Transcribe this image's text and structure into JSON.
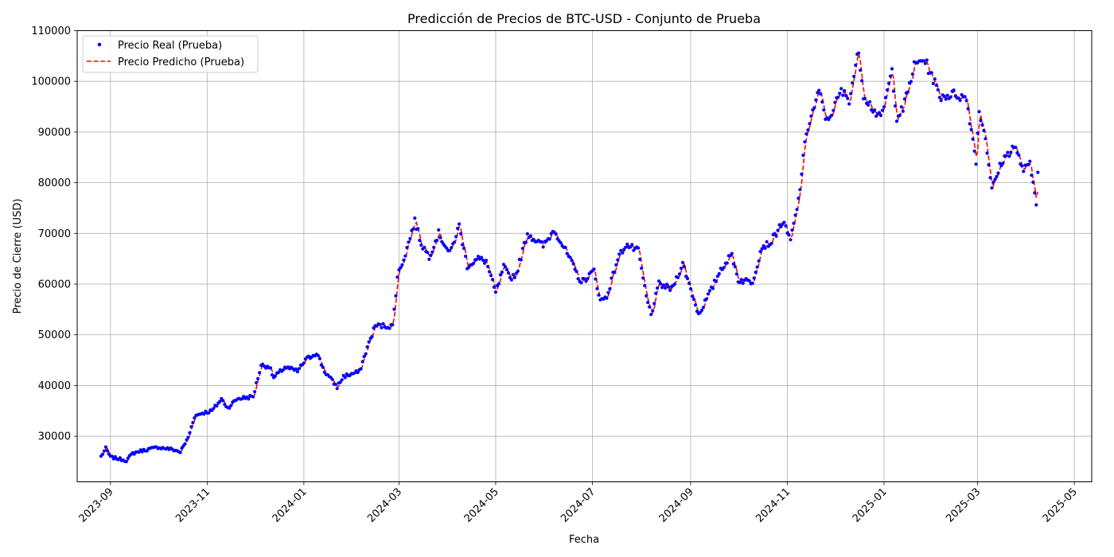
{
  "chart_data": {
    "type": "line",
    "title": "Predicción de Precios de BTC-USD - Conjunto de Prueba",
    "xlabel": "Fecha",
    "ylabel": "Precio de Cierre (USD)",
    "xlim": [
      "2023-08-11",
      "2025-05-12"
    ],
    "ylim": [
      21000,
      110000
    ],
    "grid": true,
    "legend": "upper-left",
    "x_ticks": [
      "2023-09",
      "2023-11",
      "2024-01",
      "2024-03",
      "2024-05",
      "2024-07",
      "2024-09",
      "2024-11",
      "2025-01",
      "2025-03",
      "2025-05"
    ],
    "y_ticks": [
      30000,
      40000,
      50000,
      60000,
      70000,
      80000,
      90000,
      100000,
      110000
    ],
    "anchors": [
      [
        "2023-08-26",
        26000
      ],
      [
        "2023-08-29",
        27600
      ],
      [
        "2023-09-01",
        25900
      ],
      [
        "2023-09-11",
        25200
      ],
      [
        "2023-09-15",
        26600
      ],
      [
        "2023-09-20",
        27100
      ],
      [
        "2023-10-01",
        27800
      ],
      [
        "2023-10-10",
        27400
      ],
      [
        "2023-10-15",
        26900
      ],
      [
        "2023-10-20",
        29700
      ],
      [
        "2023-10-24",
        33900
      ],
      [
        "2023-10-28",
        34500
      ],
      [
        "2023-11-04",
        35000
      ],
      [
        "2023-11-10",
        37300
      ],
      [
        "2023-11-14",
        35600
      ],
      [
        "2023-11-20",
        37400
      ],
      [
        "2023-11-30",
        37800
      ],
      [
        "2023-12-05",
        44000
      ],
      [
        "2023-12-10",
        43800
      ],
      [
        "2023-12-13",
        41500
      ],
      [
        "2023-12-20",
        43600
      ],
      [
        "2023-12-28",
        42800
      ],
      [
        "2024-01-02",
        45000
      ],
      [
        "2024-01-09",
        46500
      ],
      [
        "2024-01-14",
        42800
      ],
      [
        "2024-01-22",
        39700
      ],
      [
        "2024-01-26",
        41800
      ],
      [
        "2024-02-05",
        42700
      ],
      [
        "2024-02-10",
        47500
      ],
      [
        "2024-02-15",
        51800
      ],
      [
        "2024-02-26",
        51700
      ],
      [
        "2024-02-29",
        61500
      ],
      [
        "2024-03-05",
        66000
      ],
      [
        "2024-03-11",
        72500
      ],
      [
        "2024-03-15",
        68000
      ],
      [
        "2024-03-20",
        65500
      ],
      [
        "2024-03-26",
        70000
      ],
      [
        "2024-04-02",
        66000
      ],
      [
        "2024-04-08",
        71500
      ],
      [
        "2024-04-13",
        63600
      ],
      [
        "2024-04-20",
        65000
      ],
      [
        "2024-04-25",
        64500
      ],
      [
        "2024-05-01",
        58200
      ],
      [
        "2024-05-06",
        63400
      ],
      [
        "2024-05-10",
        61200
      ],
      [
        "2024-05-14",
        62000
      ],
      [
        "2024-05-21",
        70000
      ],
      [
        "2024-05-31",
        67500
      ],
      [
        "2024-06-07",
        70800
      ],
      [
        "2024-06-15",
        66000
      ],
      [
        "2024-06-24",
        60300
      ],
      [
        "2024-07-02",
        62600
      ],
      [
        "2024-07-06",
        56700
      ],
      [
        "2024-07-10",
        57500
      ],
      [
        "2024-07-17",
        65000
      ],
      [
        "2024-07-22",
        67800
      ],
      [
        "2024-07-30",
        66500
      ],
      [
        "2024-08-04",
        57500
      ],
      [
        "2024-08-07",
        54000
      ],
      [
        "2024-08-12",
        60000
      ],
      [
        "2024-08-20",
        59000
      ],
      [
        "2024-08-27",
        64000
      ],
      [
        "2024-09-01",
        59000
      ],
      [
        "2024-09-06",
        54000
      ],
      [
        "2024-09-15",
        59500
      ],
      [
        "2024-09-20",
        63000
      ],
      [
        "2024-09-27",
        65800
      ],
      [
        "2024-10-01",
        60800
      ],
      [
        "2024-10-10",
        60500
      ],
      [
        "2024-10-16",
        67500
      ],
      [
        "2024-10-21",
        68000
      ],
      [
        "2024-10-29",
        72300
      ],
      [
        "2024-11-03",
        68600
      ],
      [
        "2024-11-08",
        76500
      ],
      [
        "2024-11-13",
        90000
      ],
      [
        "2024-11-21",
        98000
      ],
      [
        "2024-11-26",
        92000
      ],
      [
        "2024-12-05",
        98000
      ],
      [
        "2024-12-10",
        96500
      ],
      [
        "2024-12-16",
        106000
      ],
      [
        "2024-12-19",
        97500
      ],
      [
        "2024-12-24",
        95000
      ],
      [
        "2024-12-30",
        92500
      ],
      [
        "2025-01-06",
        102000
      ],
      [
        "2025-01-09",
        93000
      ],
      [
        "2025-01-13",
        94500
      ],
      [
        "2025-01-20",
        103000
      ],
      [
        "2025-01-26",
        104500
      ],
      [
        "2025-02-01",
        100500
      ],
      [
        "2025-02-05",
        97000
      ],
      [
        "2025-02-15",
        97500
      ],
      [
        "2025-02-22",
        96500
      ],
      [
        "2025-02-28",
        84500
      ],
      [
        "2025-03-02",
        94200
      ],
      [
        "2025-03-06",
        89000
      ],
      [
        "2025-03-10",
        78600
      ],
      [
        "2025-03-16",
        84000
      ],
      [
        "2025-03-24",
        87300
      ],
      [
        "2025-03-30",
        82500
      ],
      [
        "2025-04-03",
        83500
      ],
      [
        "2025-04-07",
        76300
      ],
      [
        "2025-04-08",
        82600
      ]
    ],
    "series": [
      {
        "name": "Precio Real (Prueba)",
        "style": "points",
        "color": "#0000ff"
      },
      {
        "name": "Precio Predicho (Prueba)",
        "style": "dashed-line",
        "color": "#ff0000"
      }
    ]
  }
}
